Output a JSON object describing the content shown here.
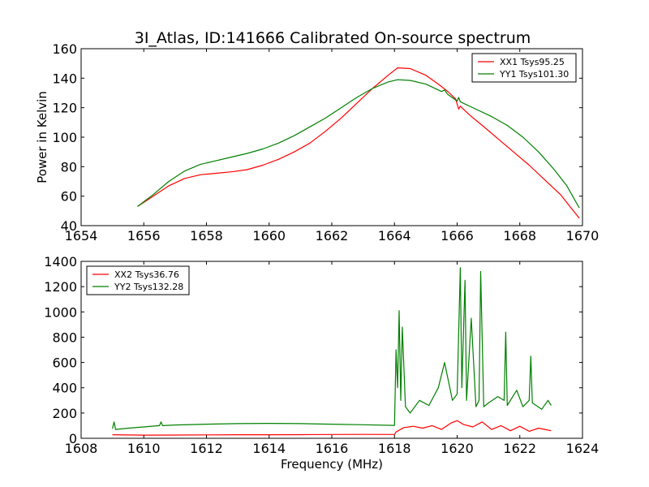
{
  "title": "3I_Atlas, ID:141666 Calibrated On-source spectrum",
  "chart_data": [
    {
      "type": "line",
      "ylabel": "Power in Kelvin",
      "xlabel": "",
      "xlim": [
        1654,
        1670
      ],
      "ylim": [
        40,
        160
      ],
      "xticks": [
        1654,
        1656,
        1658,
        1660,
        1662,
        1664,
        1666,
        1668,
        1670
      ],
      "yticks": [
        40,
        60,
        80,
        100,
        120,
        140,
        160
      ],
      "legend_position": "top-right",
      "series": [
        {
          "name": "XX1 Tsys95.25",
          "color": "#ff0000",
          "x": [
            1655.8,
            1656.3,
            1656.8,
            1657.3,
            1657.8,
            1658.3,
            1658.8,
            1659.3,
            1659.8,
            1660.3,
            1660.8,
            1661.3,
            1661.8,
            1662.3,
            1662.8,
            1663.3,
            1663.8,
            1664.1,
            1664.5,
            1665.0,
            1665.4,
            1665.7,
            1665.95,
            1666.05,
            1666.1,
            1666.4,
            1666.8,
            1667.3,
            1667.8,
            1668.3,
            1668.8,
            1669.3,
            1669.6,
            1669.9
          ],
          "y": [
            53,
            60,
            67,
            72,
            74.5,
            75.5,
            76.5,
            78,
            81,
            85,
            90,
            96,
            104,
            113,
            123,
            133,
            142,
            147,
            146.5,
            142,
            136,
            131,
            126,
            119,
            121,
            115,
            108,
            99,
            90,
            81,
            71,
            61,
            53,
            45
          ]
        },
        {
          "name": "YY1 Tsys101.30",
          "color": "#008000",
          "x": [
            1655.8,
            1656.3,
            1656.8,
            1657.3,
            1657.8,
            1658.3,
            1658.8,
            1659.3,
            1659.8,
            1660.3,
            1660.8,
            1661.3,
            1661.8,
            1662.3,
            1662.8,
            1663.3,
            1663.8,
            1664.1,
            1664.5,
            1665.0,
            1665.5,
            1665.6,
            1665.7,
            1666.0,
            1666.05,
            1666.1,
            1666.6,
            1667.1,
            1667.6,
            1668.1,
            1668.6,
            1669.1,
            1669.5,
            1669.9
          ],
          "y": [
            53,
            61,
            70,
            77,
            81.5,
            84,
            86.5,
            89,
            92,
            96,
            101,
            107,
            113,
            120,
            127,
            133,
            137.5,
            139,
            138.5,
            136,
            131,
            132,
            129,
            124.5,
            127,
            124,
            119,
            114,
            108,
            100,
            90,
            78,
            67,
            52
          ]
        }
      ]
    },
    {
      "type": "line",
      "ylabel": "",
      "xlabel": "Frequency (MHz)",
      "xlim": [
        1608,
        1624
      ],
      "ylim": [
        0,
        1400
      ],
      "xticks": [
        1608,
        1610,
        1612,
        1614,
        1616,
        1618,
        1620,
        1622,
        1624
      ],
      "yticks": [
        0,
        200,
        400,
        600,
        800,
        1000,
        1200,
        1400
      ],
      "legend_position": "top-left",
      "series": [
        {
          "name": "XX2 Tsys36.76",
          "color": "#ff0000",
          "x": [
            1609.0,
            1610.0,
            1611.0,
            1612.0,
            1613.0,
            1614.0,
            1615.0,
            1616.0,
            1617.0,
            1618.0,
            1618.05,
            1618.3,
            1618.6,
            1618.9,
            1619.2,
            1619.5,
            1619.8,
            1620.0,
            1620.2,
            1620.5,
            1620.8,
            1621.1,
            1621.4,
            1621.7,
            1622.0,
            1622.3,
            1622.6,
            1622.9,
            1623.0
          ],
          "y": [
            28,
            25,
            26,
            27,
            28,
            28,
            29,
            30,
            31,
            30,
            50,
            85,
            95,
            80,
            100,
            70,
            120,
            140,
            110,
            90,
            130,
            70,
            100,
            60,
            95,
            55,
            80,
            65,
            60
          ]
        },
        {
          "name": "YY2 Tsys132.28",
          "color": "#008000",
          "x": [
            1609.0,
            1609.05,
            1609.1,
            1609.5,
            1610.0,
            1610.5,
            1610.55,
            1610.6,
            1611.0,
            1612.0,
            1613.0,
            1614.0,
            1615.0,
            1616.0,
            1617.0,
            1618.0,
            1618.05,
            1618.1,
            1618.15,
            1618.2,
            1618.25,
            1618.35,
            1618.5,
            1618.8,
            1619.1,
            1619.4,
            1619.6,
            1619.85,
            1620.0,
            1620.1,
            1620.15,
            1620.25,
            1620.3,
            1620.45,
            1620.6,
            1620.7,
            1620.75,
            1620.85,
            1621.0,
            1621.3,
            1621.5,
            1621.55,
            1621.6,
            1621.9,
            1622.1,
            1622.3,
            1622.35,
            1622.4,
            1622.7,
            1622.9,
            1623.0
          ],
          "y": [
            75,
            130,
            70,
            80,
            90,
            100,
            130,
            100,
            105,
            112,
            116,
            118,
            116,
            112,
            107,
            102,
            700,
            400,
            1010,
            300,
            880,
            250,
            200,
            300,
            260,
            400,
            600,
            300,
            350,
            1350,
            400,
            1250,
            300,
            950,
            250,
            300,
            1320,
            250,
            280,
            330,
            300,
            840,
            260,
            380,
            250,
            300,
            650,
            280,
            230,
            300,
            260
          ]
        }
      ]
    }
  ]
}
